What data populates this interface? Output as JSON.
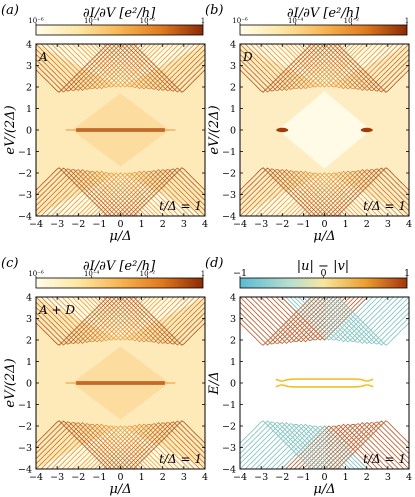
{
  "colors": {
    "orange_light": "#fdf6d8",
    "orange_mid": "#f3a23c",
    "orange_dark": "#a33a07",
    "div_neg": "#5bbad2",
    "div_zero": "#f2e3a8",
    "div_pos": "#a8340c"
  },
  "panels": [
    {
      "letter": "(a)",
      "inset": "A",
      "t_label": "t/Δ = 1",
      "xlabel": "μ/Δ",
      "ylabel": "eV/(2Δ)",
      "colorbar_title": "∂I/∂V [e²/h]",
      "colorbar_ticks": [
        "10⁻⁶",
        "10⁻⁴",
        "10⁻²",
        "1"
      ]
    },
    {
      "letter": "(b)",
      "inset": "D",
      "t_label": "t/Δ = 1",
      "xlabel": "μ/Δ",
      "ylabel": "eV/(2Δ)",
      "colorbar_title": "∂I/∂V [e²/h]",
      "colorbar_ticks": [
        "10⁻⁶",
        "10⁻⁴",
        "10⁻²",
        "1"
      ]
    },
    {
      "letter": "(c)",
      "inset": "A + D",
      "t_label": "t/Δ = 1",
      "xlabel": "μ/Δ",
      "ylabel": "eV/(2Δ)",
      "colorbar_title": "∂I/∂V [e²/h]",
      "colorbar_ticks": [
        "10⁻⁶",
        "10⁻⁴",
        "10⁻²",
        "1"
      ]
    },
    {
      "letter": "(d)",
      "inset": "",
      "t_label": "t/Δ = 1",
      "xlabel": "μ/Δ",
      "ylabel": "E/Δ",
      "colorbar_title": "|u| − |v|",
      "colorbar_ticks": [
        "−1",
        "0",
        "1"
      ]
    }
  ],
  "chart_data": [
    {
      "type": "heatmap",
      "panel": "(a)",
      "x_range": [
        -4,
        4
      ],
      "y_range": [
        -4,
        4
      ],
      "x_ticks": [
        -4,
        -3,
        -2,
        -1,
        0,
        1,
        2,
        3,
        4
      ],
      "y_ticks": [
        -4,
        -3,
        -2,
        -1,
        0,
        1,
        2,
        3,
        4
      ],
      "colorbar_scale": "log",
      "colorbar_range": [
        1e-06,
        1
      ],
      "features": {
        "gap_edges": "Bogoliubov bands forming X-shaped crossings at eV/(2Δ) = ±2, μ/Δ = 0",
        "zero_bias_line": "strong conductance line at eV = 0 for −2 ≤ μ/Δ ≤ 2",
        "num_bands": 14
      }
    },
    {
      "type": "heatmap",
      "panel": "(b)",
      "x_range": [
        -4,
        4
      ],
      "y_range": [
        -4,
        4
      ],
      "x_ticks": [
        -4,
        -3,
        -2,
        -1,
        0,
        1,
        2,
        3,
        4
      ],
      "y_ticks": [
        -4,
        -3,
        -2,
        -1,
        0,
        1,
        2,
        3,
        4
      ],
      "colorbar_scale": "log",
      "colorbar_range": [
        1e-06,
        1
      ],
      "features": {
        "gap_edges": "bands form X-shapes with crossings at eV/(2Δ) = ±2",
        "zero_bias_line": "absent; small features near μ/Δ = ±2 at eV = 0",
        "num_bands": 14
      }
    },
    {
      "type": "heatmap",
      "panel": "(c)",
      "x_range": [
        -4,
        4
      ],
      "y_range": [
        -4,
        4
      ],
      "x_ticks": [
        -4,
        -3,
        -2,
        -1,
        0,
        1,
        2,
        3,
        4
      ],
      "y_ticks": [
        -4,
        -3,
        -2,
        -1,
        0,
        1,
        2,
        3,
        4
      ],
      "colorbar_scale": "log",
      "colorbar_range": [
        1e-06,
        1
      ],
      "features": {
        "gap_edges": "X-shaped bands as in (a) and (b) combined",
        "zero_bias_line": "strong conductance line at eV = 0 for −2 ≤ μ/Δ ≤ 2",
        "num_bands": 14
      }
    },
    {
      "type": "line",
      "panel": "(d)",
      "x_range": [
        -4,
        4
      ],
      "y_range": [
        -4,
        4
      ],
      "x_ticks": [
        -4,
        -3,
        -2,
        -1,
        0,
        1,
        2,
        3,
        4
      ],
      "y_ticks": [
        -4,
        -3,
        -2,
        -1,
        0,
        1,
        2,
        3,
        4
      ],
      "color_variable": "|u| − |v|",
      "color_range": [
        -1,
        1
      ],
      "features": {
        "bands": "Bogoliubov energy levels E/Δ vs μ/Δ; particle-like (red) and hole-like (blue) branches",
        "zero_modes": "pair of levels near E = 0 for −2 ≤ μ/Δ ≤ 2",
        "num_bands": 14
      }
    }
  ]
}
